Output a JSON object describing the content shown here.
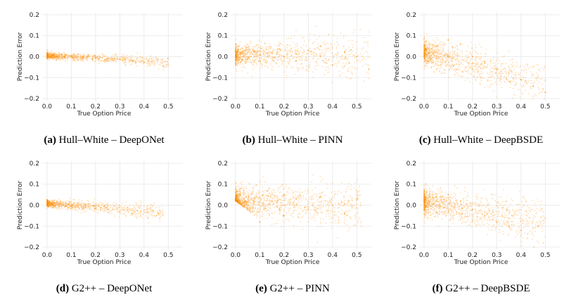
{
  "figure": {
    "point_color": "#ff8c00",
    "grid_color": "#e6e6e6"
  },
  "chart_data": [
    {
      "id": "a",
      "type": "scatter",
      "model": "Hull–White",
      "method": "DeepONet",
      "caption_tag": "(a)",
      "caption": "Hull–White – DeepONet",
      "xlabel": "True Option Price",
      "ylabel": "Prediction Error",
      "xlim": [
        -0.02,
        0.56
      ],
      "ylim": [
        -0.21,
        0.21
      ],
      "xticks": [
        "0.0",
        "0.1",
        "0.2",
        "0.3",
        "0.4",
        "0.5"
      ],
      "yticks": [
        "0.2",
        "0.1",
        "0.0",
        "−0.1",
        "−0.2"
      ],
      "cloud": {
        "xmax": 0.5,
        "center": 0.005,
        "slope": -0.06,
        "spread": 0.008,
        "spread_growth": 0.01,
        "density": 900,
        "seed": 11
      },
      "points": [
        [
          0.02,
          0.01
        ],
        [
          0.05,
          0.005
        ],
        [
          0.1,
          0.0
        ],
        [
          0.15,
          0.0
        ],
        [
          0.2,
          -0.005
        ],
        [
          0.25,
          -0.01
        ],
        [
          0.3,
          -0.012
        ],
        [
          0.35,
          -0.018
        ],
        [
          0.4,
          -0.028
        ],
        [
          0.48,
          -0.045
        ]
      ]
    },
    {
      "id": "b",
      "type": "scatter",
      "model": "Hull–White",
      "method": "PINN",
      "caption_tag": "(b)",
      "caption": "Hull–White – PINN",
      "xlabel": "True Option Price",
      "ylabel": "Prediction Error",
      "xlim": [
        -0.02,
        0.56
      ],
      "ylim": [
        -0.21,
        0.21
      ],
      "xticks": [
        "0.0",
        "0.1",
        "0.2",
        "0.3",
        "0.4",
        "0.5"
      ],
      "yticks": [
        "0.2",
        "0.1",
        "0.0",
        "−0.1",
        "−0.2"
      ],
      "cloud": {
        "xmax": 0.55,
        "center": 0.01,
        "slope": -0.02,
        "spread": 0.025,
        "spread_growth": 0.05,
        "density": 1100,
        "seed": 23
      },
      "points": [
        [
          0.02,
          0.02
        ],
        [
          0.05,
          -0.01
        ],
        [
          0.1,
          0.01
        ],
        [
          0.15,
          0.02
        ],
        [
          0.2,
          0.0
        ],
        [
          0.25,
          -0.02
        ],
        [
          0.3,
          0.03
        ],
        [
          0.35,
          0.05
        ],
        [
          0.4,
          -0.04
        ],
        [
          0.45,
          0.02
        ],
        [
          0.5,
          0.0
        ],
        [
          0.55,
          -0.06
        ]
      ]
    },
    {
      "id": "c",
      "type": "scatter",
      "model": "Hull–White",
      "method": "DeepBSDE",
      "caption_tag": "(c)",
      "caption": "Hull–White – DeepBSDE",
      "xlabel": "True Option Price",
      "ylabel": "Prediction Error",
      "xlim": [
        -0.02,
        0.56
      ],
      "ylim": [
        -0.21,
        0.21
      ],
      "xticks": [
        "0.0",
        "0.1",
        "0.2",
        "0.3",
        "0.4",
        "0.5"
      ],
      "yticks": [
        "0.2",
        "0.1",
        "0.0",
        "−0.1",
        "−0.2"
      ],
      "cloud": {
        "xmax": 0.5,
        "center": 0.02,
        "slope": -0.3,
        "spread": 0.03,
        "spread_growth": 0.04,
        "density": 1100,
        "seed": 37
      },
      "points": [
        [
          0.02,
          0.02
        ],
        [
          0.05,
          0.05
        ],
        [
          0.1,
          0.08
        ],
        [
          0.15,
          0.06
        ],
        [
          0.2,
          0.0
        ],
        [
          0.25,
          -0.03
        ],
        [
          0.3,
          -0.06
        ],
        [
          0.35,
          -0.08
        ],
        [
          0.4,
          -0.11
        ],
        [
          0.45,
          -0.14
        ],
        [
          0.5,
          -0.17
        ]
      ]
    },
    {
      "id": "d",
      "type": "scatter",
      "model": "G2++",
      "method": "DeepONet",
      "caption_tag": "(d)",
      "caption": "G2++ – DeepONet",
      "xlabel": "True Option Price",
      "ylabel": "Prediction Error",
      "xlim": [
        -0.02,
        0.56
      ],
      "ylim": [
        -0.21,
        0.21
      ],
      "xticks": [
        "0.0",
        "0.1",
        "0.2",
        "0.3",
        "0.4",
        "0.5"
      ],
      "yticks": [
        "0.2",
        "0.1",
        "0.0",
        "−0.1",
        "−0.2"
      ],
      "cloud": {
        "xmax": 0.48,
        "center": 0.008,
        "slope": -0.09,
        "spread": 0.009,
        "spread_growth": 0.02,
        "density": 900,
        "seed": 41
      },
      "points": [
        [
          0.02,
          0.01
        ],
        [
          0.05,
          0.0
        ],
        [
          0.1,
          -0.005
        ],
        [
          0.15,
          -0.01
        ],
        [
          0.2,
          -0.015
        ],
        [
          0.25,
          -0.02
        ],
        [
          0.3,
          -0.03
        ],
        [
          0.35,
          -0.04
        ],
        [
          0.46,
          -0.04
        ]
      ]
    },
    {
      "id": "e",
      "type": "scatter",
      "model": "G2++",
      "method": "PINN",
      "caption_tag": "(e)",
      "caption": "G2++ – PINN",
      "xlabel": "True Option Price",
      "ylabel": "Prediction Error",
      "xlim": [
        -0.02,
        0.56
      ],
      "ylim": [
        -0.21,
        0.21
      ],
      "xticks": [
        "0.0",
        "0.1",
        "0.2",
        "0.3",
        "0.4",
        "0.5"
      ],
      "yticks": [
        "0.2",
        "0.1",
        "0.0",
        "−0.1",
        "−0.2"
      ],
      "cloud": {
        "xmax": 0.52,
        "center": 0.02,
        "slope": -0.05,
        "spread": 0.035,
        "spread_growth": 0.04,
        "density": 1300,
        "seed": 53,
        "lower_wedge": -0.9
      },
      "points": [
        [
          0.02,
          0.05
        ],
        [
          0.05,
          -0.02
        ],
        [
          0.1,
          -0.08
        ],
        [
          0.15,
          0.02
        ],
        [
          0.2,
          -0.05
        ],
        [
          0.25,
          0.03
        ],
        [
          0.3,
          -0.02
        ],
        [
          0.35,
          0.04
        ],
        [
          0.4,
          0.0
        ],
        [
          0.45,
          -0.04
        ],
        [
          0.5,
          0.03
        ]
      ]
    },
    {
      "id": "f",
      "type": "scatter",
      "model": "G2++",
      "method": "DeepBSDE",
      "caption_tag": "(f)",
      "caption": "G2++ – DeepBSDE",
      "xlabel": "True Option Price",
      "ylabel": "Prediction Error",
      "xlim": [
        -0.02,
        0.56
      ],
      "ylim": [
        -0.21,
        0.21
      ],
      "xticks": [
        "0.0",
        "0.1",
        "0.2",
        "0.3",
        "0.4",
        "0.5"
      ],
      "yticks": [
        "0.2",
        "0.1",
        "0.0",
        "−0.1",
        "−0.2"
      ],
      "cloud": {
        "xmax": 0.5,
        "center": 0.015,
        "slope": -0.2,
        "spread": 0.03,
        "spread_growth": 0.05,
        "density": 1200,
        "seed": 67
      },
      "points": [
        [
          0.02,
          0.02
        ],
        [
          0.05,
          0.04
        ],
        [
          0.1,
          0.05
        ],
        [
          0.15,
          0.02
        ],
        [
          0.2,
          -0.02
        ],
        [
          0.25,
          -0.05
        ],
        [
          0.3,
          -0.08
        ],
        [
          0.35,
          -0.1
        ],
        [
          0.4,
          -0.12
        ],
        [
          0.47,
          -0.1
        ]
      ]
    }
  ]
}
